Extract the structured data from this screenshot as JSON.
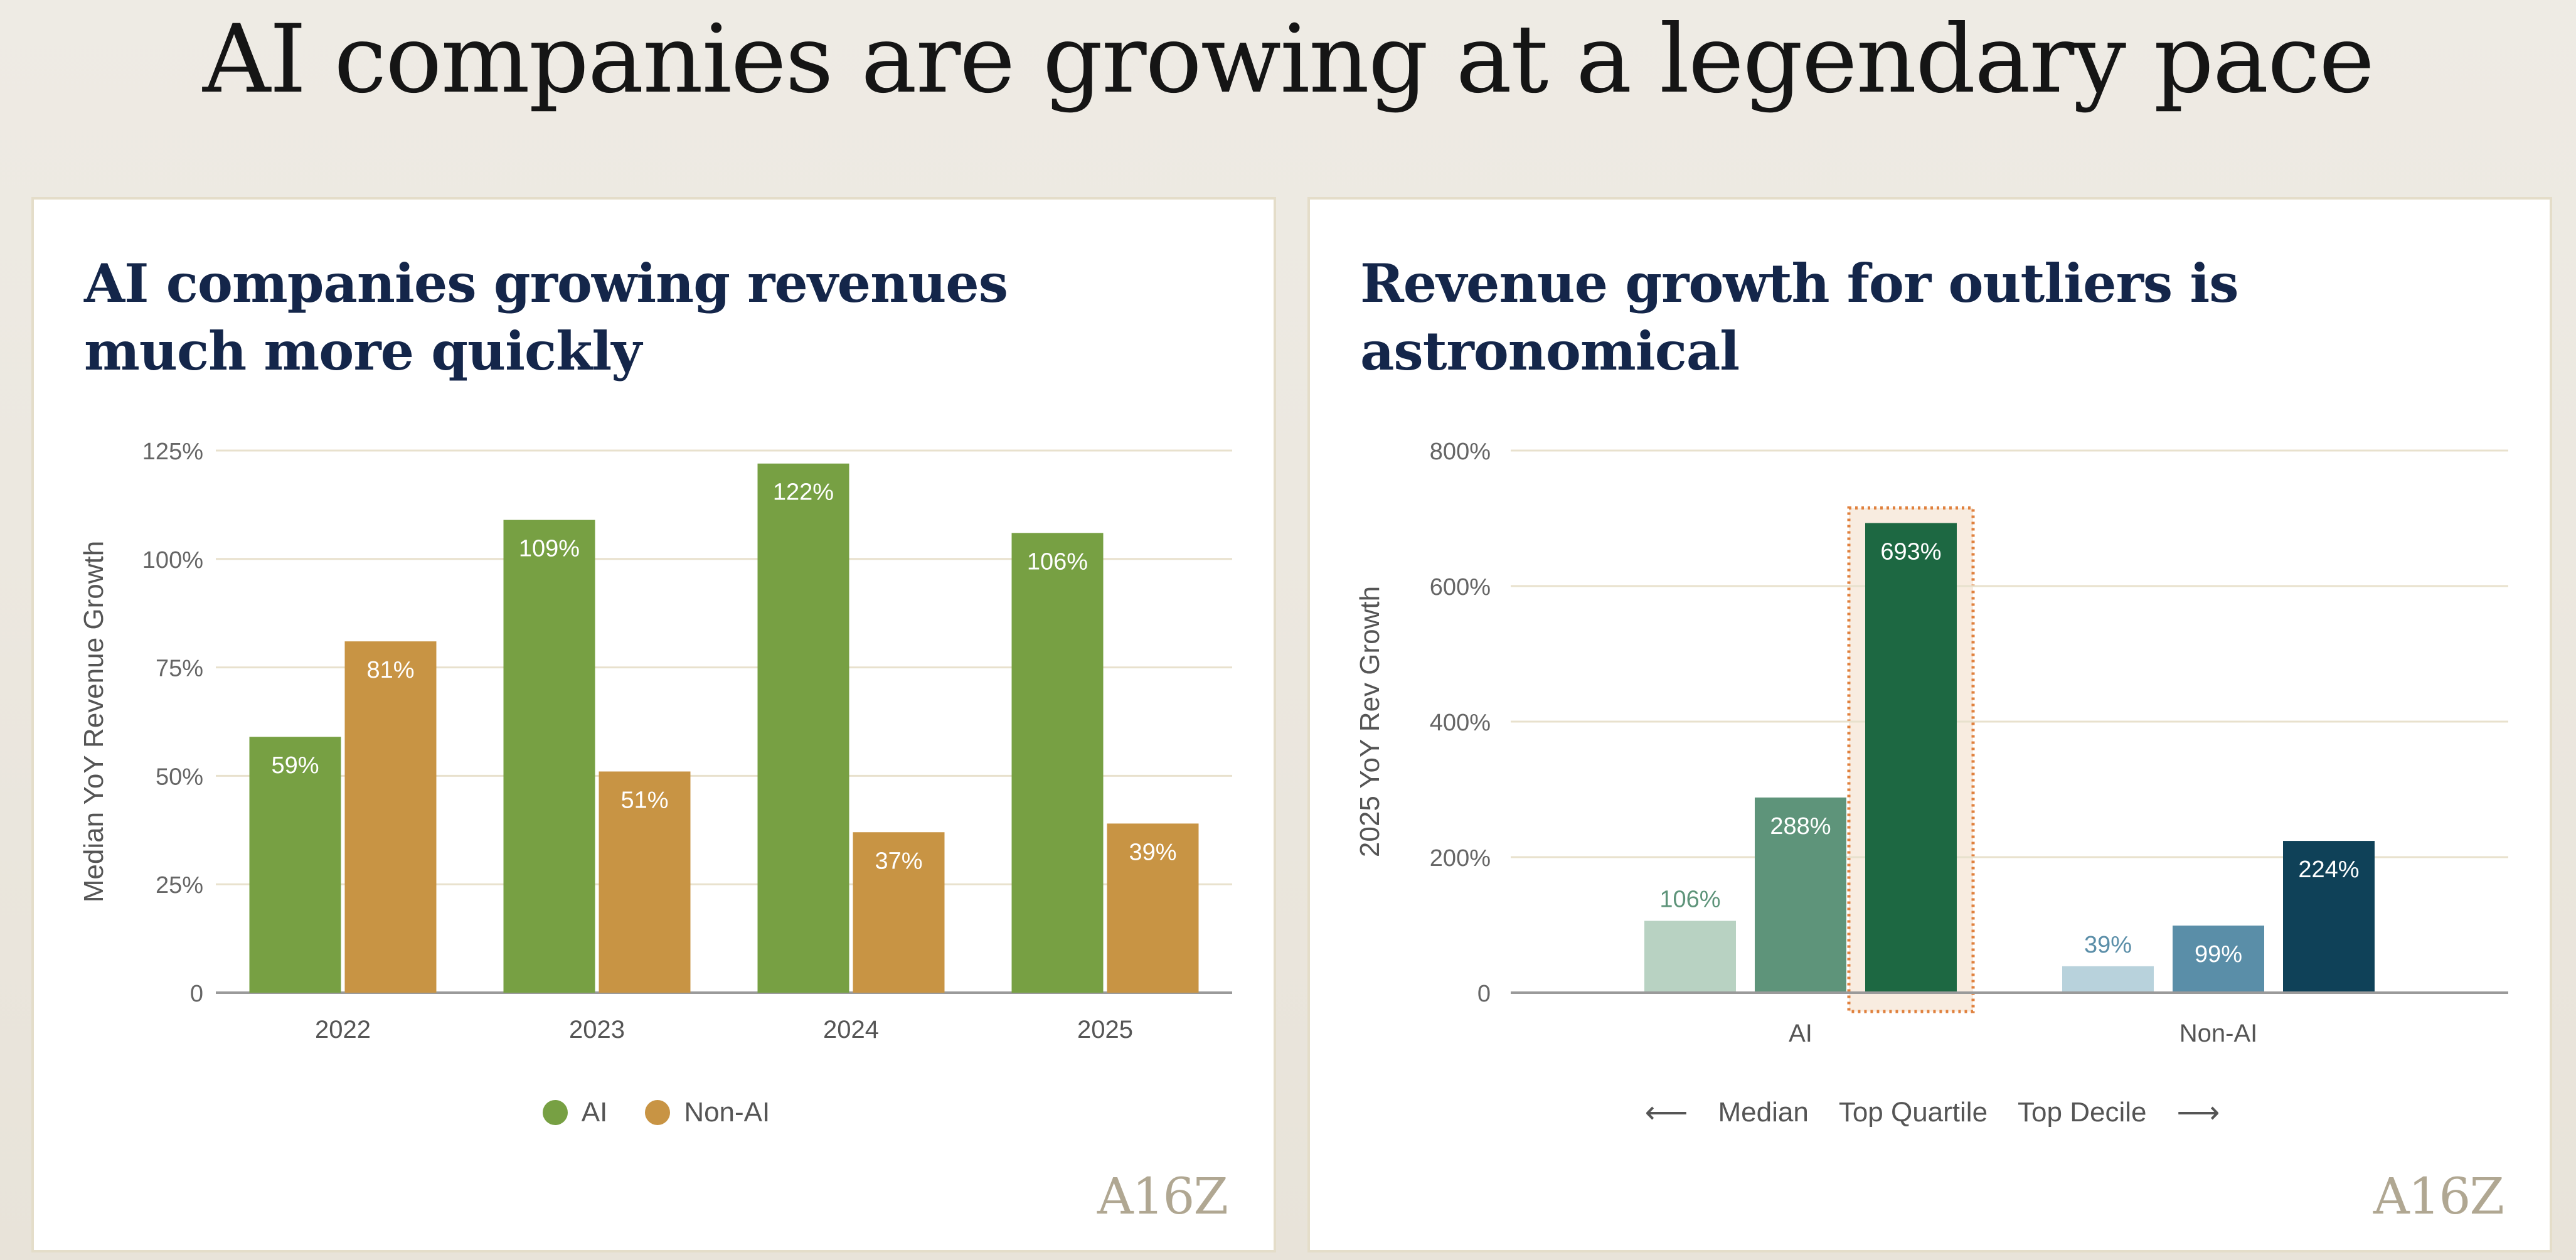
{
  "page_title": "AI companies are growing at a legendary pace",
  "logo_text": "A16Z",
  "colors": {
    "ai": "#77a043",
    "non_ai": "#c89444",
    "grid": "#e8e1cd",
    "axis": "#999999",
    "highlight_border": "#e0813e",
    "highlight_fill": "#f8ece0"
  },
  "chart_data": [
    {
      "type": "bar",
      "title": "AI companies growing revenues much more quickly",
      "xlabel": "",
      "ylabel": "Median YoY Revenue Growth",
      "ylim": [
        0,
        125
      ],
      "yticks": [
        "0",
        "25%",
        "50%",
        "75%",
        "100%",
        "125%"
      ],
      "ytick_values": [
        0,
        25,
        50,
        75,
        100,
        125
      ],
      "categories": [
        "2022",
        "2023",
        "2024",
        "2025"
      ],
      "series": [
        {
          "name": "AI",
          "color": "#77a043",
          "values": [
            59,
            109,
            122,
            106
          ],
          "labels": [
            "59%",
            "109%",
            "122%",
            "106%"
          ]
        },
        {
          "name": "Non-AI",
          "color": "#c89444",
          "values": [
            81,
            51,
            37,
            39
          ],
          "labels": [
            "81%",
            "51%",
            "37%",
            "39%"
          ]
        }
      ],
      "legend": [
        "AI",
        "Non-AI"
      ],
      "legend_position": "bottom"
    },
    {
      "type": "bar",
      "title": "Revenue growth for outliers is astronomical",
      "xlabel": "",
      "ylabel": "2025 YoY Rev Growth",
      "ylim": [
        0,
        800
      ],
      "yticks": [
        "0",
        "200%",
        "400%",
        "600%",
        "800%"
      ],
      "ytick_values": [
        0,
        200,
        400,
        600,
        800
      ],
      "categories": [
        "AI",
        "Non-AI"
      ],
      "groups": [
        {
          "name": "AI",
          "values": [
            106,
            288,
            693
          ],
          "labels": [
            "106%",
            "288%",
            "693%"
          ],
          "colors": [
            "#b8d2c2",
            "#5e947a",
            "#1d6842"
          ],
          "highlight_index": 2
        },
        {
          "name": "Non-AI",
          "values": [
            39,
            99,
            224
          ],
          "labels": [
            "39%",
            "99%",
            "224%"
          ],
          "colors": [
            "#b8d2dc",
            "#5a8ea8",
            "#0f4158"
          ]
        }
      ],
      "series_names": [
        "Median",
        "Top Quartile",
        "Top Decile"
      ],
      "legend_position": "bottom"
    }
  ]
}
